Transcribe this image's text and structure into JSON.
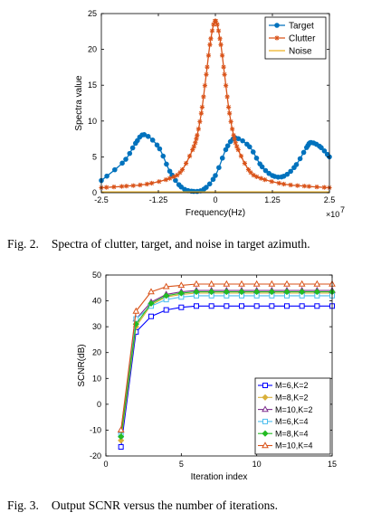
{
  "figures": [
    {
      "caption_label": "Fig. 2.",
      "caption_text": "Spectra of clutter, target, and noise in target azimuth."
    },
    {
      "caption_label": "Fig. 3.",
      "caption_text": "Output SCNR versus the number of iterations."
    }
  ],
  "chart_data": [
    {
      "type": "line",
      "xlabel": "Frequency(Hz)",
      "ylabel": "Spectra value",
      "x_multiplier_label": "×10",
      "x_multiplier_exp": "7",
      "xlim": [
        -2.5,
        2.5
      ],
      "ylim": [
        0,
        25
      ],
      "xticks": [
        -2.5,
        -1.25,
        0,
        1.25,
        2.5
      ],
      "xtick_labels": [
        "-2.5",
        "-1.25",
        "0",
        "1.25",
        "2.5"
      ],
      "yticks": [
        0,
        5,
        10,
        15,
        20,
        25
      ],
      "ytick_labels": [
        "0",
        "5",
        "10",
        "15",
        "20",
        "25"
      ],
      "grid": false,
      "legend_position": "top-right",
      "series": [
        {
          "name": "Target",
          "color": "#0072BD",
          "marker": "circle",
          "x": [
            -2.5,
            -2.0,
            -1.75,
            -1.56,
            -1.25,
            -1.0,
            -0.75,
            -0.5,
            -0.25,
            0.0,
            0.25,
            0.45,
            0.75,
            1.0,
            1.25,
            1.5,
            1.75,
            2.0,
            2.1,
            2.3,
            2.5
          ],
          "y": [
            1.7,
            4.4,
            6.9,
            8.1,
            6.4,
            3.0,
            0.8,
            0.2,
            0.5,
            2.4,
            6.3,
            7.6,
            6.4,
            3.8,
            2.4,
            2.3,
            3.7,
            6.3,
            7.0,
            6.4,
            5.0
          ]
        },
        {
          "name": "Clutter",
          "color": "#D95319",
          "marker": "star",
          "x": [
            -2.5,
            -2.0,
            -1.5,
            -1.0,
            -0.75,
            -0.5,
            -0.4,
            -0.3,
            -0.2,
            -0.1,
            0.0,
            0.1,
            0.2,
            0.3,
            0.4,
            0.5,
            0.75,
            1.0,
            1.5,
            2.0,
            2.5
          ],
          "y": [
            0.7,
            0.9,
            1.2,
            2.0,
            3.0,
            6.0,
            8.0,
            11.5,
            16.5,
            21.5,
            24.0,
            21.5,
            16.5,
            11.5,
            8.0,
            6.0,
            3.0,
            2.0,
            1.2,
            0.9,
            0.7
          ]
        },
        {
          "name": "Noise",
          "color": "#EDB120",
          "marker": "none",
          "x": [
            -2.5,
            2.5
          ],
          "y": [
            0.1,
            0.1
          ]
        }
      ]
    },
    {
      "type": "line",
      "xlabel": "Iteration index",
      "ylabel": "SCNR(dB)",
      "xlim": [
        0,
        15
      ],
      "ylim": [
        -20,
        50
      ],
      "xticks": [
        0,
        5,
        10,
        15
      ],
      "xtick_labels": [
        "0",
        "5",
        "10",
        "15"
      ],
      "yticks": [
        -20,
        -10,
        0,
        10,
        20,
        30,
        40,
        50
      ],
      "ytick_labels": [
        "-20",
        "-10",
        "0",
        "10",
        "20",
        "30",
        "40",
        "50"
      ],
      "grid": false,
      "legend_position": "bottom-right",
      "x": [
        1,
        2,
        3,
        4,
        5,
        6,
        7,
        8,
        9,
        10,
        11,
        12,
        13,
        14,
        15
      ],
      "series": [
        {
          "name": "M=6,K=2",
          "color": "#0000FF",
          "marker": "square",
          "values": [
            -16.5,
            28.0,
            34.0,
            36.5,
            37.5,
            38.0,
            38.0,
            38.0,
            38.0,
            38.0,
            38.0,
            38.0,
            38.0,
            38.0,
            38.0
          ]
        },
        {
          "name": "M=8,K=2",
          "color": "#D9B03A",
          "marker": "diamond",
          "values": [
            -14.0,
            30.0,
            38.5,
            41.5,
            42.5,
            43.0,
            43.0,
            43.0,
            43.0,
            43.0,
            43.0,
            43.0,
            43.0,
            43.0,
            43.0
          ]
        },
        {
          "name": "M=10,K=2",
          "color": "#7E2F8E",
          "marker": "triangle",
          "values": [
            -10.0,
            33.0,
            39.5,
            42.5,
            43.5,
            44.0,
            44.0,
            44.0,
            44.0,
            44.0,
            44.0,
            44.0,
            44.0,
            44.0,
            44.0
          ]
        },
        {
          "name": "M=6,K=4",
          "color": "#4DBEEE",
          "marker": "square",
          "values": [
            -12.0,
            33.0,
            38.0,
            40.5,
            41.5,
            42.0,
            42.0,
            42.0,
            42.0,
            42.0,
            42.0,
            42.0,
            42.0,
            42.0,
            42.0
          ]
        },
        {
          "name": "M=8,K=4",
          "color": "#22BB22",
          "marker": "diamond",
          "values": [
            -12.5,
            31.0,
            39.0,
            42.0,
            43.0,
            43.5,
            43.5,
            43.5,
            43.5,
            43.5,
            43.5,
            43.5,
            43.5,
            43.5,
            43.5
          ]
        },
        {
          "name": "M=10,K=4",
          "color": "#D95319",
          "marker": "triangle",
          "values": [
            -10.0,
            36.0,
            43.5,
            45.5,
            46.0,
            46.5,
            46.5,
            46.5,
            46.5,
            46.5,
            46.5,
            46.5,
            46.5,
            46.5,
            46.5
          ]
        }
      ]
    }
  ]
}
